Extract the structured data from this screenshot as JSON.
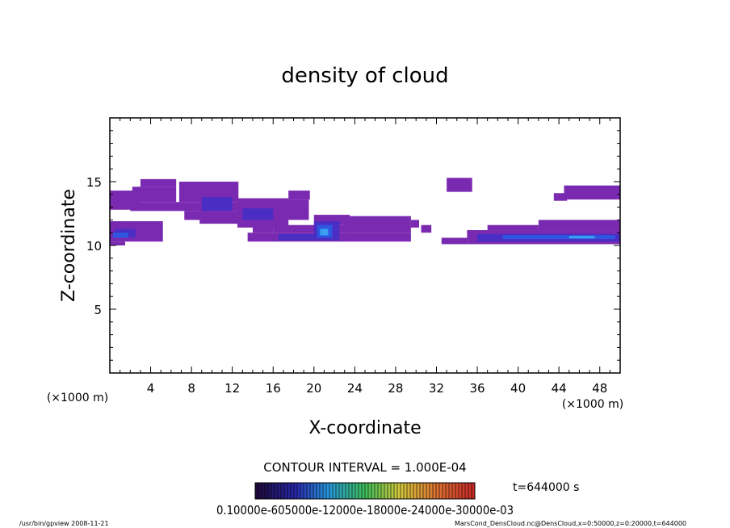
{
  "chart_data": {
    "type": "heatmap",
    "title": "density of cloud",
    "xlabel": "X-coordinate",
    "ylabel": "Z-coordinate",
    "x_unit_left": "(×1000 m)",
    "x_unit_right": "(×1000 m)",
    "xlim": [
      0,
      50
    ],
    "ylim": [
      0,
      20
    ],
    "x_ticks": [
      "4",
      "8",
      "12",
      "16",
      "20",
      "24",
      "28",
      "32",
      "36",
      "40",
      "44",
      "48"
    ],
    "y_ticks": [
      "5",
      "10",
      "15"
    ],
    "contour_interval": "CONTOUR INTERVAL = 1.000E-04",
    "time_label": "t=644000 s",
    "colorbar_labels": "0.10000e-605000e-12000e-18000e-24000e-30000e-03",
    "footer_left": "/usr/bin/gpview  2008-11-21",
    "footer_right": "MarsCond_DensCloud.nc@DensCloud,x=0:50000,z=0:20000,t=644000",
    "colors": {
      "outer": "#7a2ab0",
      "mid": "#4a2ec4",
      "core": "#2e56e0",
      "peak": "#3aa0f0"
    },
    "regions": [
      {
        "level": 1,
        "x0": 0.0,
        "x1": 3.0,
        "z0": 12.8,
        "z1": 14.3
      },
      {
        "level": 1,
        "x0": 2.0,
        "x1": 14.0,
        "z0": 12.7,
        "z1": 13.4
      },
      {
        "level": 1,
        "x0": 2.2,
        "x1": 6.5,
        "z0": 13.4,
        "z1": 14.6
      },
      {
        "level": 1,
        "x0": 3.0,
        "x1": 6.5,
        "z0": 14.6,
        "z1": 15.2
      },
      {
        "level": 1,
        "x0": 6.8,
        "x1": 12.6,
        "z0": 13.4,
        "z1": 15.0
      },
      {
        "level": 1,
        "x0": 7.3,
        "x1": 9.2,
        "z0": 12.0,
        "z1": 12.7
      },
      {
        "level": 1,
        "x0": 8.8,
        "x1": 12.7,
        "z0": 11.7,
        "z1": 12.7
      },
      {
        "level": 1,
        "x0": 12.5,
        "x1": 17.5,
        "z0": 11.4,
        "z1": 13.7
      },
      {
        "level": 1,
        "x0": 16.0,
        "x1": 19.5,
        "z0": 12.0,
        "z1": 13.6
      },
      {
        "level": 1,
        "x0": 17.5,
        "x1": 19.6,
        "z0": 13.6,
        "z1": 14.3
      },
      {
        "level": 1,
        "x0": 14.0,
        "x1": 16.0,
        "z0": 11.0,
        "z1": 11.5
      },
      {
        "level": 1,
        "x0": 0.0,
        "x1": 5.2,
        "z0": 10.3,
        "z1": 11.9
      },
      {
        "level": 1,
        "x0": 0.0,
        "x1": 1.5,
        "z0": 10.0,
        "z1": 10.3
      },
      {
        "level": 1,
        "x0": 13.5,
        "x1": 29.5,
        "z0": 10.3,
        "z1": 11.0
      },
      {
        "level": 1,
        "x0": 16.0,
        "x1": 23.5,
        "z0": 11.0,
        "z1": 11.6
      },
      {
        "level": 1,
        "x0": 20.0,
        "x1": 23.5,
        "z0": 11.6,
        "z1": 12.4
      },
      {
        "level": 1,
        "x0": 23.0,
        "x1": 29.5,
        "z0": 11.0,
        "z1": 12.3
      },
      {
        "level": 1,
        "x0": 29.5,
        "x1": 30.3,
        "z0": 11.4,
        "z1": 12.0
      },
      {
        "level": 1,
        "x0": 30.5,
        "x1": 31.5,
        "z0": 11.0,
        "z1": 11.6
      },
      {
        "level": 1,
        "x0": 32.5,
        "x1": 35.0,
        "z0": 10.1,
        "z1": 10.6
      },
      {
        "level": 1,
        "x0": 35.0,
        "x1": 50.0,
        "z0": 10.1,
        "z1": 11.2
      },
      {
        "level": 1,
        "x0": 37.0,
        "x1": 42.0,
        "z0": 11.2,
        "z1": 11.6
      },
      {
        "level": 1,
        "x0": 42.0,
        "x1": 50.0,
        "z0": 11.2,
        "z1": 12.0
      },
      {
        "level": 1,
        "x0": 33.0,
        "x1": 35.5,
        "z0": 14.2,
        "z1": 15.3
      },
      {
        "level": 1,
        "x0": 44.5,
        "x1": 50.0,
        "z0": 13.6,
        "z1": 14.7
      },
      {
        "level": 1,
        "x0": 43.5,
        "x1": 44.8,
        "z0": 13.5,
        "z1": 14.1
      },
      {
        "level": 2,
        "x0": 0.5,
        "x1": 2.5,
        "z0": 10.6,
        "z1": 11.3
      },
      {
        "level": 2,
        "x0": 9.0,
        "x1": 12.0,
        "z0": 12.7,
        "z1": 13.8
      },
      {
        "level": 2,
        "x0": 13.0,
        "x1": 16.0,
        "z0": 12.0,
        "z1": 12.9
      },
      {
        "level": 2,
        "x0": 16.5,
        "x1": 22.5,
        "z0": 10.4,
        "z1": 10.9
      },
      {
        "level": 2,
        "x0": 20.0,
        "x1": 22.5,
        "z0": 10.9,
        "z1": 11.9
      },
      {
        "level": 2,
        "x0": 36.0,
        "x1": 50.0,
        "z0": 10.3,
        "z1": 10.9
      },
      {
        "level": 3,
        "x0": 0.3,
        "x1": 1.8,
        "z0": 10.6,
        "z1": 11.0
      },
      {
        "level": 3,
        "x0": 20.3,
        "x1": 21.8,
        "z0": 10.6,
        "z1": 11.6
      },
      {
        "level": 3,
        "x0": 38.5,
        "x1": 49.5,
        "z0": 10.5,
        "z1": 10.8
      },
      {
        "level": 4,
        "x0": 45.0,
        "x1": 47.5,
        "z0": 10.55,
        "z1": 10.75
      },
      {
        "level": 4,
        "x0": 20.6,
        "x1": 21.4,
        "z0": 10.8,
        "z1": 11.3
      }
    ]
  }
}
